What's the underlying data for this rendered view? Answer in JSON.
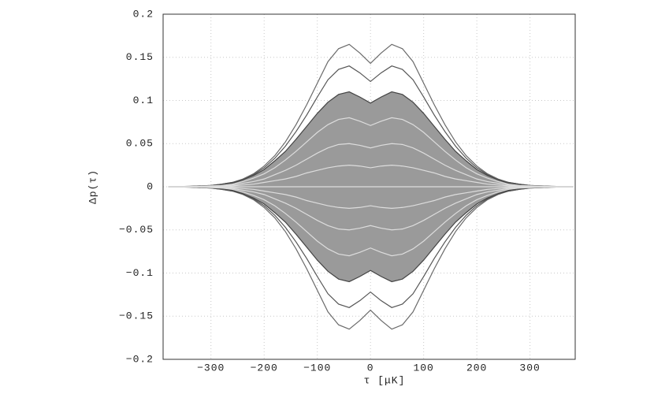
{
  "chart_data": {
    "type": "line",
    "x_label": "τ [μK]",
    "y_label": "Δp(τ)",
    "x": [
      -380,
      -340,
      -300,
      -280,
      -260,
      -240,
      -220,
      -200,
      -180,
      -160,
      -140,
      -120,
      -100,
      -80,
      -60,
      -40,
      -20,
      0,
      20,
      40,
      60,
      80,
      100,
      120,
      140,
      160,
      180,
      200,
      220,
      240,
      260,
      280,
      300,
      340,
      380
    ],
    "series": [
      {
        "color": "#6a6a6a",
        "values": [
          0,
          0.0005,
          0.0015,
          0.003,
          0.005,
          0.009,
          0.015,
          0.024,
          0.036,
          0.052,
          0.072,
          0.095,
          0.12,
          0.145,
          0.16,
          0.165,
          0.155,
          0.143,
          0.155,
          0.165,
          0.16,
          0.145,
          0.12,
          0.095,
          0.072,
          0.052,
          0.036,
          0.024,
          0.015,
          0.009,
          0.005,
          0.003,
          0.0015,
          0.0005,
          0
        ]
      },
      {
        "color": "#6a6a6a",
        "values": [
          0,
          -0.0005,
          -0.0015,
          -0.003,
          -0.005,
          -0.009,
          -0.015,
          -0.024,
          -0.036,
          -0.052,
          -0.072,
          -0.095,
          -0.12,
          -0.145,
          -0.16,
          -0.165,
          -0.155,
          -0.143,
          -0.155,
          -0.165,
          -0.16,
          -0.145,
          -0.12,
          -0.095,
          -0.072,
          -0.052,
          -0.036,
          -0.024,
          -0.015,
          -0.009,
          -0.005,
          -0.003,
          -0.0015,
          -0.0005,
          0
        ]
      },
      {
        "color": "#555555",
        "values": [
          0,
          0.0005,
          0.0015,
          0.003,
          0.005,
          0.008,
          0.014,
          0.022,
          0.033,
          0.047,
          0.064,
          0.083,
          0.104,
          0.124,
          0.136,
          0.14,
          0.132,
          0.122,
          0.132,
          0.14,
          0.136,
          0.124,
          0.104,
          0.083,
          0.064,
          0.047,
          0.033,
          0.022,
          0.014,
          0.008,
          0.005,
          0.003,
          0.0015,
          0.0005,
          0
        ]
      },
      {
        "color": "#555555",
        "values": [
          0,
          -0.0005,
          -0.0015,
          -0.003,
          -0.005,
          -0.008,
          -0.014,
          -0.022,
          -0.033,
          -0.047,
          -0.064,
          -0.083,
          -0.104,
          -0.124,
          -0.136,
          -0.14,
          -0.132,
          -0.122,
          -0.132,
          -0.14,
          -0.136,
          -0.124,
          -0.104,
          -0.083,
          -0.064,
          -0.047,
          -0.033,
          -0.022,
          -0.014,
          -0.008,
          -0.005,
          -0.003,
          -0.0015,
          -0.0005,
          0
        ]
      },
      {
        "color": "#444444",
        "fill": "#9a9a9a",
        "values": [
          0,
          0.0003,
          0.001,
          0.002,
          0.004,
          0.008,
          0.013,
          0.02,
          0.03,
          0.041,
          0.055,
          0.07,
          0.085,
          0.098,
          0.107,
          0.11,
          0.104,
          0.097,
          0.104,
          0.11,
          0.107,
          0.098,
          0.085,
          0.07,
          0.055,
          0.041,
          0.03,
          0.02,
          0.013,
          0.008,
          0.004,
          0.002,
          0.001,
          0.0003,
          0
        ]
      },
      {
        "color": "#444444",
        "fill": "#9a9a9a",
        "values": [
          0,
          -0.0003,
          -0.001,
          -0.002,
          -0.004,
          -0.008,
          -0.013,
          -0.02,
          -0.03,
          -0.041,
          -0.055,
          -0.07,
          -0.085,
          -0.098,
          -0.107,
          -0.11,
          -0.104,
          -0.097,
          -0.104,
          -0.11,
          -0.107,
          -0.098,
          -0.085,
          -0.07,
          -0.055,
          -0.041,
          -0.03,
          -0.02,
          -0.013,
          -0.008,
          -0.004,
          -0.002,
          -0.001,
          -0.0003,
          0
        ]
      },
      {
        "color": "#dddddd",
        "values": [
          0,
          0.0002,
          0.001,
          0.0015,
          0.003,
          0.006,
          0.01,
          0.015,
          0.022,
          0.031,
          0.041,
          0.052,
          0.063,
          0.072,
          0.078,
          0.08,
          0.076,
          0.071,
          0.076,
          0.08,
          0.078,
          0.072,
          0.063,
          0.052,
          0.041,
          0.031,
          0.022,
          0.015,
          0.01,
          0.006,
          0.003,
          0.0015,
          0.001,
          0.0002,
          0
        ]
      },
      {
        "color": "#dddddd",
        "values": [
          0,
          -0.0002,
          -0.001,
          -0.0015,
          -0.003,
          -0.006,
          -0.01,
          -0.015,
          -0.022,
          -0.031,
          -0.041,
          -0.052,
          -0.063,
          -0.072,
          -0.078,
          -0.08,
          -0.076,
          -0.071,
          -0.076,
          -0.08,
          -0.078,
          -0.072,
          -0.063,
          -0.052,
          -0.041,
          -0.031,
          -0.022,
          -0.015,
          -0.01,
          -0.006,
          -0.003,
          -0.0015,
          -0.001,
          -0.0002,
          0
        ]
      },
      {
        "color": "#dddddd",
        "values": [
          0,
          0.0001,
          0.0005,
          0.001,
          0.002,
          0.004,
          0.006,
          0.009,
          0.014,
          0.019,
          0.025,
          0.032,
          0.039,
          0.045,
          0.049,
          0.05,
          0.048,
          0.045,
          0.048,
          0.05,
          0.049,
          0.045,
          0.039,
          0.032,
          0.025,
          0.019,
          0.014,
          0.009,
          0.006,
          0.004,
          0.002,
          0.001,
          0.0005,
          0.0001,
          0
        ]
      },
      {
        "color": "#dddddd",
        "values": [
          0,
          -0.0001,
          -0.0005,
          -0.001,
          -0.002,
          -0.004,
          -0.006,
          -0.009,
          -0.014,
          -0.019,
          -0.025,
          -0.032,
          -0.039,
          -0.045,
          -0.049,
          -0.05,
          -0.048,
          -0.045,
          -0.048,
          -0.05,
          -0.049,
          -0.045,
          -0.039,
          -0.032,
          -0.025,
          -0.019,
          -0.014,
          -0.009,
          -0.006,
          -0.004,
          -0.002,
          -0.001,
          -0.0005,
          -0.0001,
          0
        ]
      },
      {
        "color": "#dddddd",
        "values": [
          0,
          0,
          0.0002,
          0.0005,
          0.001,
          0.002,
          0.003,
          0.005,
          0.007,
          0.009,
          0.012,
          0.016,
          0.019,
          0.022,
          0.024,
          0.025,
          0.024,
          0.022,
          0.024,
          0.025,
          0.024,
          0.022,
          0.019,
          0.016,
          0.012,
          0.009,
          0.007,
          0.005,
          0.003,
          0.002,
          0.001,
          0.0005,
          0.0002,
          0,
          0
        ]
      },
      {
        "color": "#dddddd",
        "values": [
          0,
          0,
          -0.0002,
          -0.0005,
          -0.001,
          -0.002,
          -0.003,
          -0.005,
          -0.007,
          -0.009,
          -0.012,
          -0.016,
          -0.019,
          -0.022,
          -0.024,
          -0.025,
          -0.024,
          -0.022,
          -0.024,
          -0.025,
          -0.024,
          -0.022,
          -0.019,
          -0.016,
          -0.012,
          -0.009,
          -0.007,
          -0.005,
          -0.003,
          -0.002,
          -0.001,
          -0.0005,
          -0.0002,
          0,
          0
        ]
      },
      {
        "color": "#dddddd",
        "values": [
          0,
          0,
          0,
          0,
          0,
          0,
          0,
          0,
          0,
          0,
          0,
          0,
          0,
          0,
          0,
          0,
          0,
          0,
          0,
          0,
          0,
          0,
          0,
          0,
          0,
          0,
          0,
          0,
          0,
          0,
          0,
          0,
          0,
          0,
          0
        ]
      }
    ],
    "xlim": [
      -390,
      385
    ],
    "xticks": [
      {
        "value": -300,
        "label": "−300"
      },
      {
        "value": -200,
        "label": "−200"
      },
      {
        "value": -100,
        "label": "−100"
      },
      0,
      100,
      200,
      300
    ],
    "ylim": [
      -0.2,
      0.2
    ],
    "yticks": [
      {
        "value": -0.2,
        "label": "−0.2"
      },
      {
        "value": -0.15,
        "label": "−0.15"
      },
      {
        "value": -0.1,
        "label": "−0.1"
      },
      {
        "value": -0.05,
        "label": "−0.05"
      },
      0,
      0.05,
      0.1,
      0.15,
      0.2
    ],
    "grid": true
  }
}
